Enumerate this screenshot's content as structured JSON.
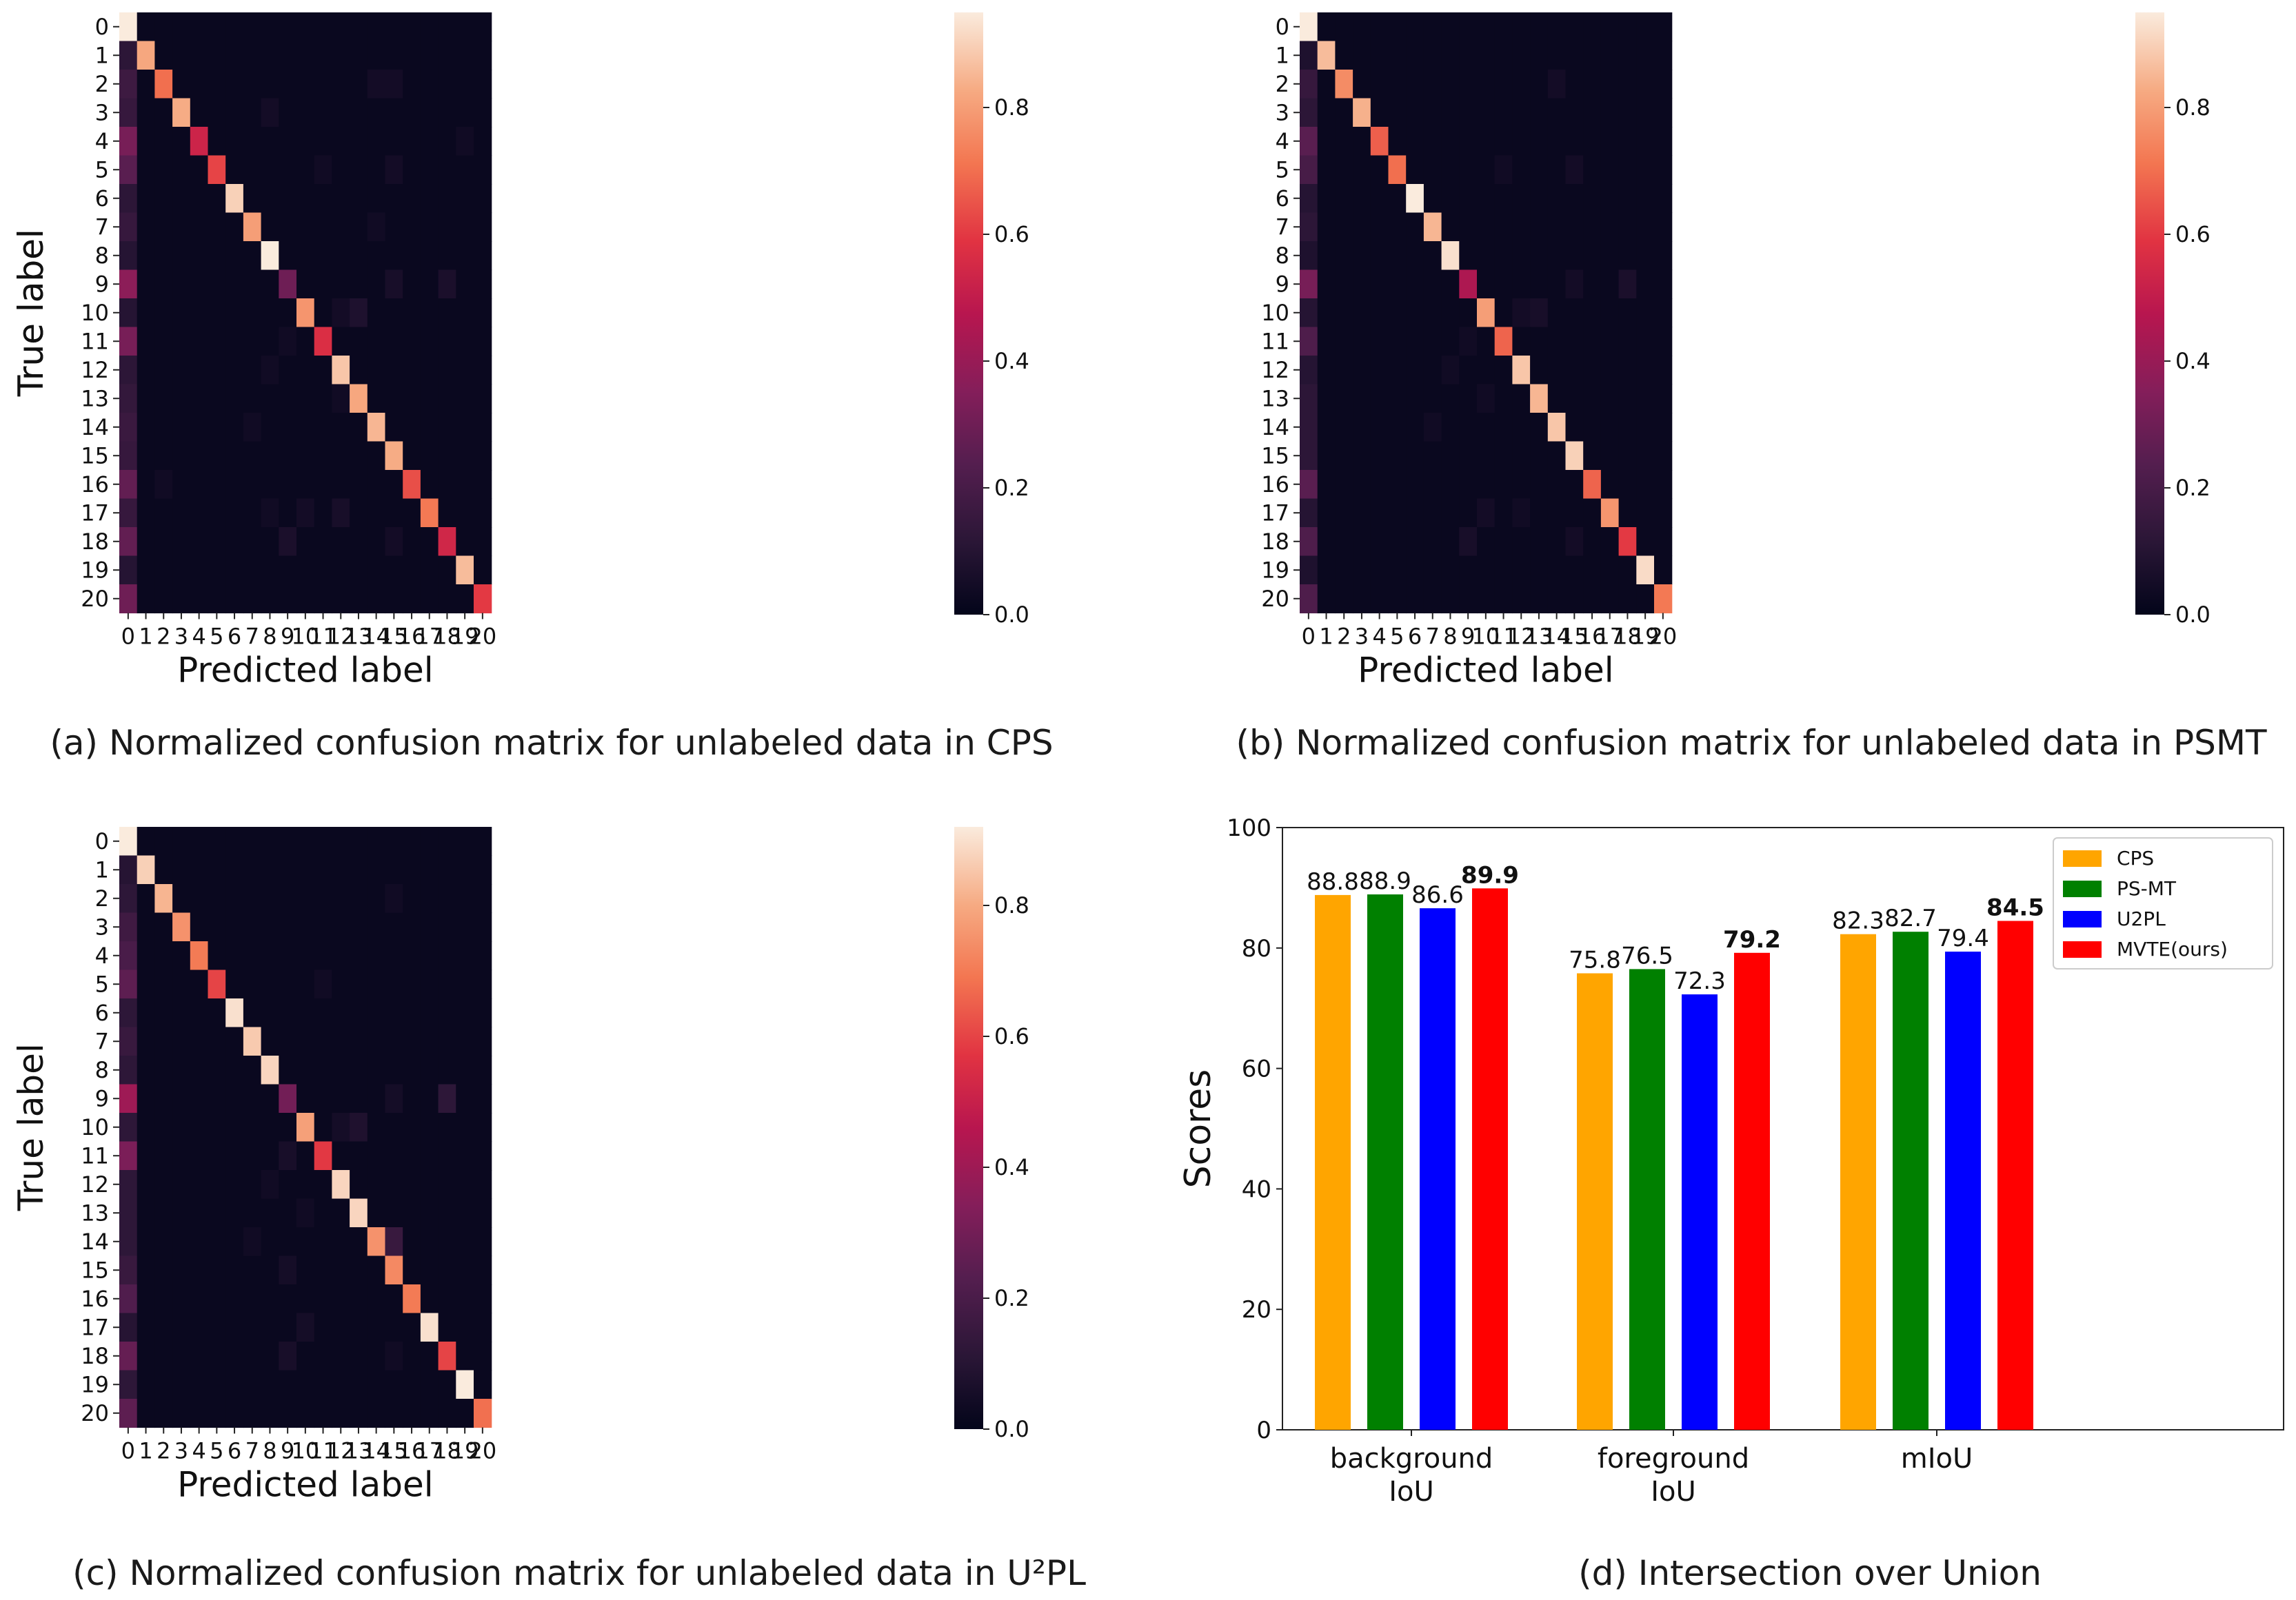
{
  "chart_data": [
    {
      "type": "heatmap",
      "id": "a",
      "caption": "(a) Normalized confusion matrix for unlabeled data in CPS",
      "xlabel": "Predicted label",
      "ylabel": "True label",
      "labels": [
        "0",
        "1",
        "2",
        "3",
        "4",
        "5",
        "6",
        "7",
        "8",
        "9",
        "10",
        "11",
        "12",
        "13",
        "14",
        "15",
        "16",
        "17",
        "18",
        "19",
        "20"
      ],
      "colorbar": {
        "ticks": [
          "0.0",
          "0.2",
          "0.4",
          "0.6",
          "0.8"
        ],
        "range": [
          0,
          0.95
        ]
      },
      "diagonal": [
        0.95,
        0.82,
        0.7,
        0.83,
        0.53,
        0.62,
        0.9,
        0.8,
        0.95,
        0.3,
        0.78,
        0.57,
        0.88,
        0.82,
        0.85,
        0.83,
        0.64,
        0.72,
        0.54,
        0.86,
        0.6
      ],
      "column0": [
        0.95,
        0.12,
        0.17,
        0.15,
        0.32,
        0.25,
        0.12,
        0.15,
        0.1,
        0.37,
        0.1,
        0.32,
        0.12,
        0.14,
        0.16,
        0.15,
        0.27,
        0.15,
        0.27,
        0.1,
        0.3
      ],
      "offdiag": [
        [
          2,
          14,
          0.05
        ],
        [
          2,
          15,
          0.05
        ],
        [
          3,
          8,
          0.05
        ],
        [
          4,
          19,
          0.04
        ],
        [
          5,
          11,
          0.04
        ],
        [
          5,
          15,
          0.05
        ],
        [
          7,
          14,
          0.04
        ],
        [
          9,
          15,
          0.06
        ],
        [
          9,
          18,
          0.07
        ],
        [
          10,
          12,
          0.05
        ],
        [
          10,
          13,
          0.08
        ],
        [
          11,
          9,
          0.04
        ],
        [
          12,
          8,
          0.04
        ],
        [
          13,
          12,
          0.04
        ],
        [
          14,
          7,
          0.04
        ],
        [
          16,
          2,
          0.04
        ],
        [
          17,
          8,
          0.04
        ],
        [
          17,
          10,
          0.05
        ],
        [
          17,
          12,
          0.06
        ],
        [
          18,
          9,
          0.07
        ],
        [
          18,
          15,
          0.05
        ]
      ]
    },
    {
      "type": "heatmap",
      "id": "b",
      "caption": "(b) Normalized confusion matrix for unlabeled data in PSMT",
      "xlabel": "Predicted label",
      "ylabel": "True label",
      "labels": [
        "0",
        "1",
        "2",
        "3",
        "4",
        "5",
        "6",
        "7",
        "8",
        "9",
        "10",
        "11",
        "12",
        "13",
        "14",
        "15",
        "16",
        "17",
        "18",
        "19",
        "20"
      ],
      "colorbar": {
        "ticks": [
          "0.0",
          "0.2",
          "0.4",
          "0.6",
          "0.8"
        ],
        "range": [
          0,
          0.95
        ]
      },
      "diagonal": [
        0.95,
        0.86,
        0.76,
        0.84,
        0.67,
        0.7,
        0.95,
        0.85,
        0.93,
        0.45,
        0.8,
        0.68,
        0.88,
        0.85,
        0.88,
        0.9,
        0.68,
        0.78,
        0.6,
        0.92,
        0.72
      ],
      "column0": [
        0.95,
        0.08,
        0.15,
        0.12,
        0.25,
        0.2,
        0.1,
        0.12,
        0.08,
        0.32,
        0.1,
        0.22,
        0.1,
        0.12,
        0.12,
        0.12,
        0.25,
        0.1,
        0.22,
        0.08,
        0.22
      ],
      "offdiag": [
        [
          2,
          14,
          0.05
        ],
        [
          5,
          11,
          0.04
        ],
        [
          5,
          15,
          0.05
        ],
        [
          9,
          15,
          0.05
        ],
        [
          9,
          18,
          0.07
        ],
        [
          10,
          12,
          0.05
        ],
        [
          10,
          13,
          0.06
        ],
        [
          11,
          9,
          0.04
        ],
        [
          12,
          8,
          0.04
        ],
        [
          13,
          10,
          0.04
        ],
        [
          14,
          7,
          0.04
        ],
        [
          17,
          10,
          0.05
        ],
        [
          17,
          12,
          0.04
        ],
        [
          18,
          9,
          0.06
        ],
        [
          18,
          15,
          0.05
        ]
      ]
    },
    {
      "type": "heatmap",
      "id": "c",
      "caption": "(c) Normalized confusion matrix for unlabeled data in U²PL",
      "xlabel": "Predicted label",
      "ylabel": "True label",
      "labels": [
        "0",
        "1",
        "2",
        "3",
        "4",
        "5",
        "6",
        "7",
        "8",
        "9",
        "10",
        "11",
        "12",
        "13",
        "14",
        "15",
        "16",
        "17",
        "18",
        "19",
        "20"
      ],
      "colorbar": {
        "ticks": [
          "0.0",
          "0.2",
          "0.4",
          "0.6",
          "0.8"
        ],
        "range": [
          0,
          0.92
        ]
      },
      "diagonal": [
        0.92,
        0.87,
        0.82,
        0.75,
        0.7,
        0.6,
        0.9,
        0.86,
        0.88,
        0.3,
        0.78,
        0.58,
        0.88,
        0.88,
        0.75,
        0.73,
        0.7,
        0.9,
        0.6,
        0.92,
        0.68
      ],
      "column0": [
        0.92,
        0.1,
        0.12,
        0.17,
        0.2,
        0.25,
        0.12,
        0.15,
        0.12,
        0.4,
        0.12,
        0.32,
        0.12,
        0.12,
        0.12,
        0.15,
        0.22,
        0.1,
        0.27,
        0.12,
        0.25
      ],
      "offdiag": [
        [
          2,
          15,
          0.04
        ],
        [
          5,
          11,
          0.04
        ],
        [
          9,
          15,
          0.05
        ],
        [
          9,
          18,
          0.12
        ],
        [
          10,
          12,
          0.05
        ],
        [
          10,
          13,
          0.08
        ],
        [
          11,
          9,
          0.06
        ],
        [
          12,
          8,
          0.04
        ],
        [
          13,
          10,
          0.04
        ],
        [
          14,
          15,
          0.15
        ],
        [
          14,
          7,
          0.04
        ],
        [
          15,
          9,
          0.05
        ],
        [
          17,
          10,
          0.05
        ],
        [
          18,
          9,
          0.06
        ],
        [
          18,
          15,
          0.04
        ]
      ]
    },
    {
      "type": "bar",
      "id": "d",
      "caption": "(d) Intersection over Union",
      "ylabel": "Scores",
      "ylim": [
        0,
        100
      ],
      "yticks": [
        "0",
        "20",
        "40",
        "60",
        "80",
        "100"
      ],
      "categories": [
        [
          "background",
          "IoU"
        ],
        [
          "foreground",
          "IoU"
        ],
        [
          "mIoU"
        ]
      ],
      "series": [
        {
          "name": "CPS",
          "color": "#FFA500",
          "values": [
            88.8,
            75.8,
            82.3
          ],
          "labels": [
            "88.8",
            "75.8",
            "82.3"
          ]
        },
        {
          "name": "PS-MT",
          "color": "#008000",
          "values": [
            88.9,
            76.5,
            82.7
          ],
          "labels": [
            "88.9",
            "76.5",
            "82.7"
          ]
        },
        {
          "name": "U2PL",
          "color": "#0000FF",
          "values": [
            86.6,
            72.3,
            79.4
          ],
          "labels": [
            "86.6",
            "72.3",
            "79.4"
          ]
        },
        {
          "name": "MVTE(ours)",
          "color": "#FF0000",
          "values": [
            89.9,
            79.2,
            84.5
          ],
          "labels": [
            "89.9",
            "79.2",
            "84.5"
          ],
          "bold": true
        }
      ],
      "legend_position": "top-right"
    }
  ]
}
